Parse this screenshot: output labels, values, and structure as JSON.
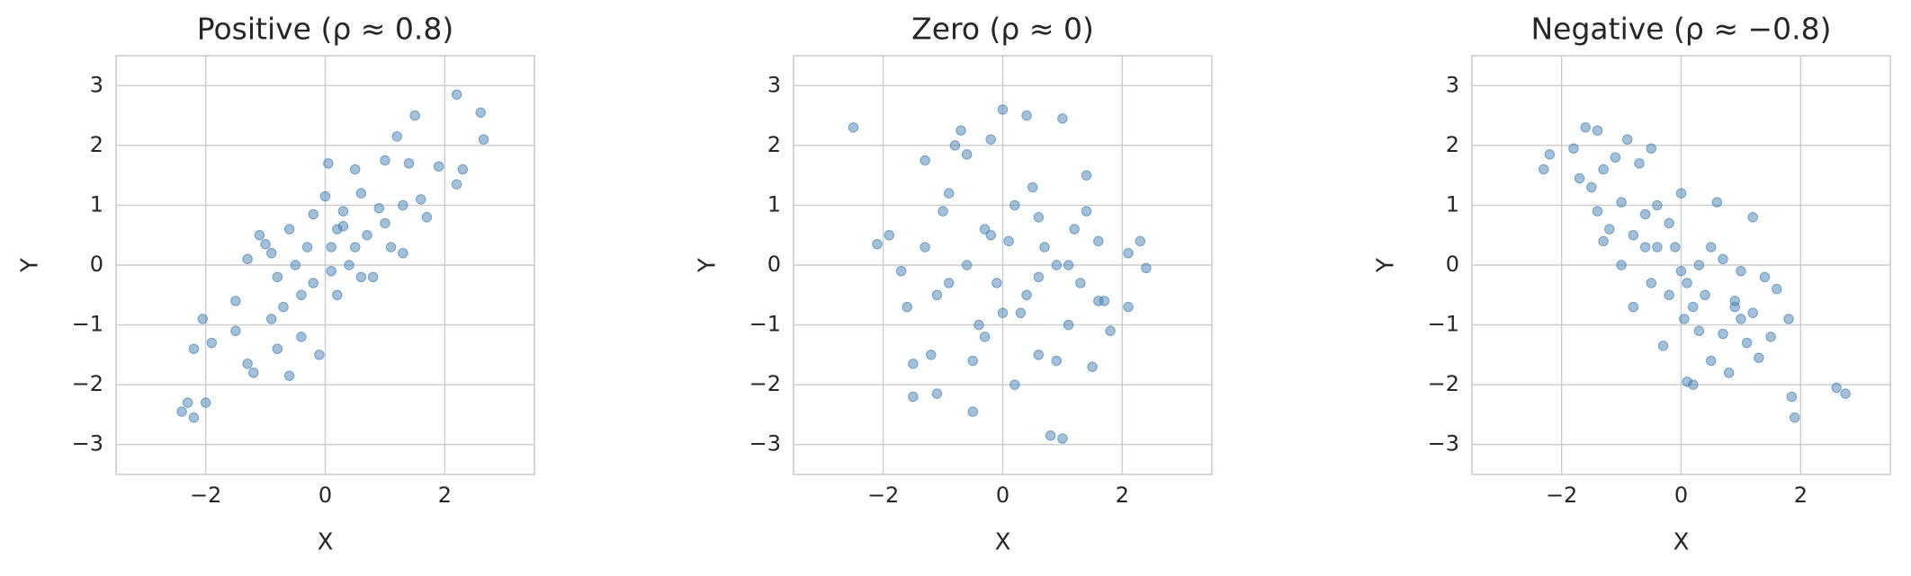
{
  "chart_data": [
    {
      "type": "scatter",
      "title": "Positive (ρ ≈ 0.8)",
      "x_label": "X",
      "y_label": "Y",
      "color": "#4682b4",
      "grid": true,
      "xlim": [
        -3.5,
        3.5
      ],
      "ylim": [
        -3.5,
        3.5
      ],
      "xticks": [
        {
          "value": -2,
          "label": "−2"
        },
        0,
        2
      ],
      "yticks": [
        {
          "value": -3,
          "label": "−3"
        },
        {
          "value": -2,
          "label": "−2"
        },
        {
          "value": -1,
          "label": "−1"
        },
        0,
        1,
        2,
        3
      ],
      "x": [
        -2.4,
        -2.3,
        -2.2,
        -2.0,
        -2.2,
        -2.05,
        -1.9,
        -1.5,
        -1.3,
        -1.2,
        -1.3,
        -1.1,
        -1.0,
        -0.9,
        -0.8,
        -0.6,
        -0.6,
        -0.5,
        -0.4,
        -0.3,
        -0.2,
        -0.1,
        0.0,
        0.05,
        0.1,
        0.2,
        0.3,
        0.4,
        0.5,
        0.6,
        0.7,
        0.8,
        0.9,
        1.0,
        1.1,
        1.2,
        1.3,
        1.4,
        1.5,
        1.6,
        1.7,
        1.9,
        2.2,
        2.2,
        2.3,
        2.6,
        2.65,
        -0.7,
        -0.2,
        0.3,
        0.6,
        -1.5,
        -0.9,
        0.1,
        1.0,
        -0.4,
        0.5,
        -0.8,
        0.2,
        1.3
      ],
      "values": [
        -2.45,
        -2.3,
        -2.55,
        -2.3,
        -1.4,
        -0.9,
        -1.3,
        -1.1,
        -1.65,
        -1.8,
        0.1,
        0.5,
        0.35,
        -0.9,
        -1.4,
        -1.85,
        0.6,
        0.0,
        -0.5,
        0.3,
        0.85,
        -1.5,
        1.15,
        1.7,
        0.3,
        -0.5,
        0.65,
        0.0,
        1.6,
        1.2,
        0.5,
        -0.2,
        0.95,
        1.75,
        0.3,
        2.15,
        1.0,
        1.7,
        2.5,
        1.1,
        0.8,
        1.65,
        2.85,
        1.35,
        1.6,
        2.55,
        2.1,
        -0.7,
        -0.3,
        0.9,
        -0.2,
        -0.6,
        0.2,
        -0.1,
        0.7,
        -1.2,
        0.3,
        -0.2,
        0.6,
        0.2
      ]
    },
    {
      "type": "scatter",
      "title": "Zero (ρ ≈ 0)",
      "x_label": "X",
      "y_label": "Y",
      "color": "#4682b4",
      "grid": true,
      "xlim": [
        -3.5,
        3.5
      ],
      "ylim": [
        -3.5,
        3.5
      ],
      "xticks": [
        {
          "value": -2,
          "label": "−2"
        },
        0,
        2
      ],
      "yticks": [
        {
          "value": -3,
          "label": "−3"
        },
        {
          "value": -2,
          "label": "−2"
        },
        {
          "value": -1,
          "label": "−1"
        },
        0,
        1,
        2,
        3
      ],
      "x": [
        -2.5,
        -2.1,
        -1.9,
        -1.6,
        -1.5,
        -1.5,
        -1.3,
        -1.2,
        -1.1,
        -1.0,
        -0.9,
        -0.8,
        -0.7,
        -0.6,
        -0.5,
        -0.4,
        -0.3,
        -0.2,
        -0.1,
        0.0,
        0.1,
        0.2,
        0.3,
        0.4,
        0.5,
        0.6,
        0.7,
        0.8,
        0.9,
        1.0,
        1.0,
        1.1,
        1.2,
        1.3,
        1.4,
        1.5,
        1.6,
        1.7,
        1.8,
        2.1,
        2.1,
        2.3,
        2.4,
        -1.7,
        -1.3,
        -0.6,
        0.2,
        0.6,
        -0.3,
        0.9,
        -0.9,
        1.4,
        -0.2,
        0.4,
        1.1,
        -1.1,
        0.0,
        0.6,
        -0.5,
        1.6
      ],
      "values": [
        2.3,
        0.35,
        0.5,
        -0.7,
        -1.65,
        -2.2,
        1.75,
        -1.5,
        -2.15,
        0.9,
        -0.3,
        2.0,
        2.25,
        1.85,
        -2.45,
        -1.0,
        0.6,
        2.1,
        -0.3,
        2.6,
        0.4,
        -2.0,
        -0.8,
        2.5,
        1.3,
        -1.5,
        0.3,
        -2.85,
        0.0,
        2.45,
        -2.9,
        -1.0,
        0.6,
        -0.3,
        1.5,
        -1.7,
        0.4,
        -0.6,
        -1.1,
        0.2,
        -0.7,
        0.4,
        -0.05,
        -0.1,
        0.3,
        0.0,
        1.0,
        -0.2,
        -1.2,
        -1.6,
        1.2,
        0.9,
        0.5,
        -0.5,
        0.0,
        -0.5,
        -0.8,
        0.8,
        -1.6,
        -0.6
      ]
    },
    {
      "type": "scatter",
      "title": "Negative (ρ ≈ −0.8)",
      "x_label": "X",
      "y_label": "Y",
      "color": "#4682b4",
      "grid": true,
      "xlim": [
        -3.5,
        3.5
      ],
      "ylim": [
        -3.5,
        3.5
      ],
      "xticks": [
        {
          "value": -2,
          "label": "−2"
        },
        0,
        2
      ],
      "yticks": [
        {
          "value": -3,
          "label": "−3"
        },
        {
          "value": -2,
          "label": "−2"
        },
        {
          "value": -1,
          "label": "−1"
        },
        0,
        1,
        2,
        3
      ],
      "x": [
        -2.3,
        -2.2,
        -1.8,
        -1.6,
        -1.4,
        -1.7,
        -1.3,
        -1.1,
        -0.9,
        -0.7,
        -0.5,
        -1.5,
        -1.4,
        -1.3,
        -1.0,
        -0.8,
        -0.6,
        -0.5,
        -0.4,
        -0.3,
        -0.2,
        -0.1,
        0.0,
        0.05,
        0.1,
        0.1,
        0.2,
        0.3,
        0.4,
        0.5,
        0.6,
        0.7,
        0.8,
        0.9,
        1.0,
        1.1,
        1.2,
        1.3,
        1.4,
        1.5,
        1.6,
        1.8,
        1.85,
        1.9,
        2.6,
        2.75,
        -0.8,
        -0.2,
        0.3,
        0.7,
        -1.0,
        0.0,
        0.5,
        1.0,
        -0.6,
        0.2,
        -0.4,
        0.9,
        1.2,
        -1.2
      ],
      "values": [
        1.6,
        1.85,
        1.95,
        2.3,
        2.25,
        1.45,
        1.6,
        1.8,
        2.1,
        1.7,
        1.95,
        1.3,
        0.9,
        0.4,
        1.05,
        0.5,
        0.85,
        -0.3,
        0.3,
        -1.35,
        0.7,
        0.3,
        1.2,
        -0.9,
        -0.3,
        -1.95,
        -2.0,
        0.0,
        -0.5,
        -1.6,
        1.05,
        -1.15,
        -1.8,
        -0.6,
        -0.9,
        -1.3,
        0.8,
        -1.55,
        -0.2,
        -1.2,
        -0.4,
        -0.9,
        -2.2,
        -2.55,
        -2.05,
        -2.15,
        -0.7,
        -0.5,
        -1.1,
        0.1,
        0.0,
        -0.1,
        0.3,
        -0.1,
        0.3,
        -0.7,
        1.0,
        -0.7,
        -0.8,
        0.6
      ]
    }
  ]
}
